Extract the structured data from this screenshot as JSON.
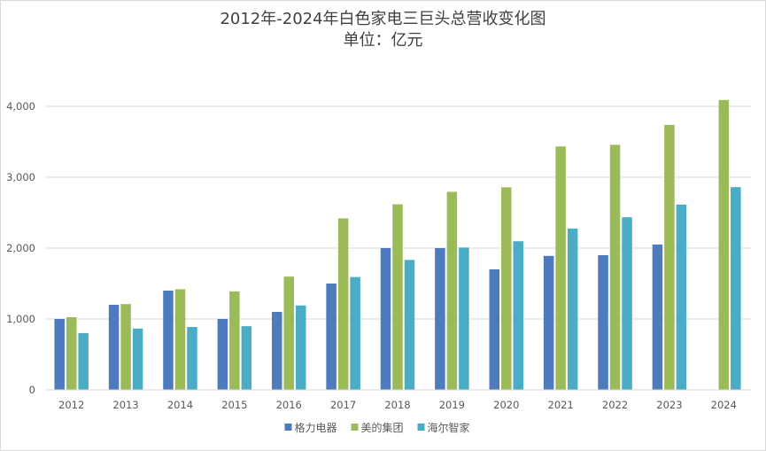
{
  "chart_data": {
    "type": "bar",
    "title": "2012年-2024年白色家电三巨头总营收变化图",
    "subtitle": "单位：亿元",
    "categories": [
      "2012",
      "2013",
      "2014",
      "2015",
      "2016",
      "2017",
      "2018",
      "2019",
      "2020",
      "2021",
      "2022",
      "2023",
      "2024"
    ],
    "series": [
      {
        "name": "格力电器",
        "color": "#4e7bbd",
        "values": [
          1000,
          1200,
          1400,
          1000,
          1100,
          1500,
          2000,
          2000,
          1700,
          1890,
          1900,
          2050,
          null
        ]
      },
      {
        "name": "美的集团",
        "color": "#9bbb59",
        "values": [
          1025,
          1210,
          1420,
          1390,
          1598,
          2419,
          2618,
          2794,
          2857,
          3434,
          3457,
          3737,
          4090
        ]
      },
      {
        "name": "海尔智家",
        "color": "#4bacc6",
        "values": [
          800,
          865,
          887,
          898,
          1191,
          1592,
          1833,
          2008,
          2097,
          2276,
          2435,
          2614,
          2860
        ]
      }
    ],
    "yticks": [
      "0",
      "1,000",
      "2,000",
      "3,000",
      "4,000"
    ],
    "ylim": [
      0,
      4000
    ],
    "grid": true,
    "legend_position": "bottom"
  }
}
